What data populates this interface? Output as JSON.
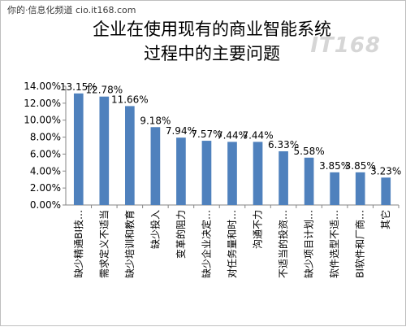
{
  "page": {
    "header_text": "你的·信息化频道 cio.it168.com",
    "watermark": "IT168"
  },
  "chart_data": {
    "type": "bar",
    "title_lines": [
      "企业在使用现有的商业智能系统",
      "过程中的主要问题"
    ],
    "xlabel": "",
    "ylabel": "",
    "ylim": [
      0,
      14
    ],
    "y_tick_step": 2,
    "y_tick_format": "0.00%",
    "grid": false,
    "legend": "none",
    "bar_color": "#4f81bd",
    "categories": [
      "缺少精通BI技…",
      "需求定义不适当",
      "缺少培训和教育",
      "缺少投入",
      "变革的阻力",
      "缺少企业决定…",
      "对任务量和时…",
      "沟通不力",
      "不适当的投资…",
      "缺少项目计划…",
      "软件选型不适…",
      "BI软件和厂商…",
      "其它"
    ],
    "values": [
      13.15,
      12.78,
      11.66,
      9.18,
      7.94,
      7.57,
      7.44,
      7.44,
      6.33,
      5.58,
      3.85,
      3.85,
      3.23
    ],
    "data_labels": [
      "13.15%",
      "12.78%",
      "11.66%",
      "9.18%",
      "7.94%",
      "7.57%",
      "7.44%",
      "7.44%",
      "6.33%",
      "5.58%",
      "3.85%",
      "3.85%",
      "3.23%"
    ]
  }
}
